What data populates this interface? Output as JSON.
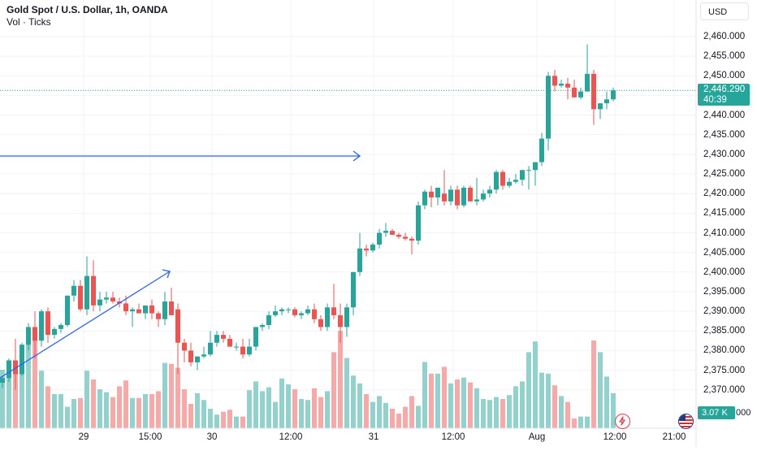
{
  "header": {
    "title": "Gold Spot / U.S. Dollar, 1h, OANDA",
    "subtitle": "Vol · Ticks"
  },
  "currency_selector": "USD",
  "price_axis": {
    "ticks": [
      "2,460.000",
      "2,455.000",
      "2,450.000",
      "2,445.000",
      "2,440.000",
      "2,435.000",
      "2,430.000",
      "2,425.000",
      "2,420.000",
      "2,415.000",
      "2,410.000",
      "2,405.000",
      "2,400.000",
      "2,395.000",
      "2,390.000",
      "2,385.000",
      "2,380.000",
      "2,375.000",
      "2,370.000"
    ],
    "current_price": "2,446.290",
    "countdown": "40:39",
    "volume_label": "3.07 K",
    "partial_tick": "000"
  },
  "time_axis": {
    "labels": [
      "29",
      "15:00",
      "30",
      "12:00",
      "31",
      "12:00",
      "Aug",
      "12:00",
      "21:00"
    ]
  },
  "colors": {
    "up": "#26a69a",
    "down": "#ef5350",
    "up_volume": "#92d2cc",
    "down_volume": "#f7a9a7",
    "drawing": "#2962ff",
    "grid": "#f0f3fa"
  },
  "icons": [
    "arrow-right-icon",
    "lightning-icon",
    "us-flag-icon"
  ],
  "chart_data": {
    "type": "candlestick",
    "title": "Gold Spot / U.S. Dollar, 1h, OANDA",
    "ylim": [
      2365,
      2465
    ],
    "grid": true,
    "last_price": 2446.29,
    "candles": [
      [
        2371.8,
        2373.5,
        2370.5,
        2373.0
      ],
      [
        2373.0,
        2378.0,
        2372.0,
        2377.5
      ],
      [
        2377.5,
        2383.0,
        2370.0,
        2374.0
      ],
      [
        2374.0,
        2382.0,
        2373.5,
        2381.5
      ],
      [
        2381.5,
        2387.0,
        2380.0,
        2386.0
      ],
      [
        2386.0,
        2390.0,
        2378.0,
        2382.5
      ],
      [
        2382.5,
        2390.5,
        2381.0,
        2390.0
      ],
      [
        2390.0,
        2391.0,
        2382.0,
        2384.0
      ],
      [
        2384.0,
        2386.0,
        2383.0,
        2385.5
      ],
      [
        2385.5,
        2387.0,
        2384.5,
        2386.5
      ],
      [
        2386.5,
        2394.0,
        2386.0,
        2394.0
      ],
      [
        2394.0,
        2398.0,
        2392.5,
        2396.5
      ],
      [
        2396.5,
        2398.0,
        2390.0,
        2390.5
      ],
      [
        2390.5,
        2404.0,
        2389.0,
        2399.0
      ],
      [
        2399.0,
        2403.0,
        2390.0,
        2391.5
      ],
      [
        2391.5,
        2395.0,
        2390.0,
        2393.0
      ],
      [
        2393.0,
        2395.0,
        2392.0,
        2393.5
      ],
      [
        2393.5,
        2395.0,
        2392.0,
        2392.5
      ],
      [
        2392.5,
        2393.5,
        2391.0,
        2392.0
      ],
      [
        2392.0,
        2394.0,
        2389.0,
        2390.0
      ],
      [
        2390.0,
        2391.0,
        2386.0,
        2390.5
      ],
      [
        2390.5,
        2392.0,
        2389.5,
        2389.5
      ],
      [
        2389.5,
        2391.0,
        2388.0,
        2391.5
      ],
      [
        2391.5,
        2393.0,
        2388.0,
        2389.5
      ],
      [
        2389.5,
        2390.0,
        2386.0,
        2388.0
      ],
      [
        2388.0,
        2395.0,
        2386.5,
        2392.5
      ],
      [
        2392.5,
        2396.0,
        2390.0,
        2389.0
      ],
      [
        2390.5,
        2392.0,
        2374.0,
        2382.0
      ],
      [
        2382.0,
        2383.0,
        2377.0,
        2380.0
      ],
      [
        2380.0,
        2382.0,
        2376.0,
        2377.0
      ],
      [
        2377.0,
        2378.5,
        2375.0,
        2378.5
      ],
      [
        2378.5,
        2381.0,
        2378.0,
        2379.0
      ],
      [
        2379.0,
        2385.0,
        2378.5,
        2382.0
      ],
      [
        2382.0,
        2385.0,
        2381.0,
        2384.0
      ],
      [
        2384.0,
        2385.0,
        2382.0,
        2383.0
      ],
      [
        2383.0,
        2384.0,
        2381.0,
        2381.0
      ],
      [
        2381.0,
        2382.0,
        2380.0,
        2381.0
      ],
      [
        2381.0,
        2383.0,
        2378.0,
        2379.0
      ],
      [
        2379.0,
        2383.0,
        2378.5,
        2381.0
      ],
      [
        2381.0,
        2386.0,
        2380.0,
        2386.0
      ],
      [
        2386.0,
        2387.0,
        2385.0,
        2386.5
      ],
      [
        2386.5,
        2390.0,
        2385.5,
        2389.0
      ],
      [
        2389.0,
        2391.5,
        2388.5,
        2390.0
      ],
      [
        2390.0,
        2391.0,
        2389.0,
        2390.5
      ],
      [
        2390.5,
        2391.0,
        2389.5,
        2390.5
      ],
      [
        2390.5,
        2391.0,
        2388.5,
        2389.0
      ],
      [
        2389.0,
        2390.0,
        2388.0,
        2389.5
      ],
      [
        2389.5,
        2391.5,
        2389.0,
        2390.5
      ],
      [
        2390.5,
        2392.0,
        2387.0,
        2388.0
      ],
      [
        2388.0,
        2389.0,
        2385.0,
        2386.0
      ],
      [
        2386.0,
        2392.0,
        2385.0,
        2391.0
      ],
      [
        2391.0,
        2397.0,
        2388.0,
        2389.0
      ],
      [
        2389.0,
        2392.0,
        2382.0,
        2386.0
      ],
      [
        2386.0,
        2392.0,
        2383.5,
        2391.0
      ],
      [
        2391.0,
        2400.0,
        2389.0,
        2400.0
      ],
      [
        2400.0,
        2410.0,
        2399.0,
        2406.0
      ],
      [
        2406.0,
        2407.0,
        2404.0,
        2405.5
      ],
      [
        2405.5,
        2407.5,
        2405.0,
        2407.0
      ],
      [
        2407.0,
        2411.0,
        2406.0,
        2410.0
      ],
      [
        2410.0,
        2412.5,
        2409.0,
        2410.5
      ],
      [
        2410.5,
        2411.0,
        2409.5,
        2409.5
      ],
      [
        2409.5,
        2410.0,
        2408.5,
        2409.0
      ],
      [
        2409.0,
        2410.0,
        2408.0,
        2408.5
      ],
      [
        2408.5,
        2409.0,
        2404.5,
        2408.0
      ],
      [
        2408.0,
        2418.0,
        2407.0,
        2417.0
      ],
      [
        2417.0,
        2421.0,
        2416.0,
        2420.5
      ],
      [
        2420.5,
        2422.0,
        2416.5,
        2419.0
      ],
      [
        2419.0,
        2421.0,
        2417.0,
        2421.5
      ],
      [
        2420.0,
        2426.0,
        2417.0,
        2418.0
      ],
      [
        2418.0,
        2422.0,
        2417.0,
        2421.0
      ],
      [
        2421.0,
        2422.0,
        2416.0,
        2417.0
      ],
      [
        2417.0,
        2422.0,
        2416.5,
        2421.5
      ],
      [
        2421.5,
        2422.0,
        2418.0,
        2418.0
      ],
      [
        2418.0,
        2424.0,
        2417.0,
        2418.5
      ],
      [
        2418.5,
        2421.0,
        2418.0,
        2420.0
      ],
      [
        2420.0,
        2422.0,
        2419.0,
        2421.0
      ],
      [
        2421.0,
        2426.0,
        2420.0,
        2425.5
      ],
      [
        2425.5,
        2426.0,
        2421.0,
        2422.0
      ],
      [
        2422.0,
        2424.0,
        2421.5,
        2423.0
      ],
      [
        2423.0,
        2425.0,
        2422.5,
        2423.5
      ],
      [
        2423.5,
        2426.0,
        2422.0,
        2426.0
      ],
      [
        2426.0,
        2427.0,
        2421.0,
        2426.0
      ],
      [
        2426.0,
        2428.0,
        2422.0,
        2428.0
      ],
      [
        2428.0,
        2435.5,
        2427.0,
        2434.0
      ],
      [
        2434.0,
        2451.0,
        2431.0,
        2450.0
      ],
      [
        2450.0,
        2451.5,
        2446.0,
        2447.5
      ],
      [
        2447.5,
        2449.0,
        2447.0,
        2448.0
      ],
      [
        2448.0,
        2449.5,
        2444.0,
        2447.0
      ],
      [
        2447.0,
        2449.0,
        2444.5,
        2444.5
      ],
      [
        2444.5,
        2447.0,
        2444.0,
        2446.0
      ],
      [
        2446.0,
        2458.0,
        2446.0,
        2450.5
      ],
      [
        2450.5,
        2451.5,
        2437.5,
        2441.5
      ],
      [
        2441.5,
        2443.0,
        2439.0,
        2443.0
      ],
      [
        2443.0,
        2446.0,
        2441.5,
        2444.0
      ],
      [
        2444.0,
        2447.0,
        2443.5,
        2446.29
      ]
    ],
    "volume": [
      0.6,
      0.67,
      0.56,
      0.82,
      0.98,
      0.92,
      0.59,
      0.43,
      0.35,
      0.35,
      0.22,
      0.3,
      0.31,
      0.59,
      0.5,
      0.4,
      0.37,
      0.32,
      0.43,
      0.49,
      0.31,
      0.31,
      0.35,
      0.35,
      0.38,
      0.67,
      0.66,
      0.62,
      0.4,
      0.25,
      0.36,
      0.29,
      0.2,
      0.14,
      0.17,
      0.19,
      0.12,
      0.12,
      0.39,
      0.48,
      0.38,
      0.42,
      0.27,
      0.51,
      0.45,
      0.4,
      0.3,
      0.29,
      0.41,
      0.32,
      0.38,
      0.78,
      1.0,
      0.72,
      0.54,
      0.46,
      0.35,
      0.27,
      0.33,
      0.26,
      0.2,
      0.15,
      0.22,
      0.33,
      0.23,
      0.68,
      0.56,
      0.56,
      0.63,
      0.46,
      0.5,
      0.52,
      0.47,
      0.41,
      0.3,
      0.29,
      0.32,
      0.3,
      0.34,
      0.43,
      0.48,
      0.78,
      0.89,
      0.57,
      0.56,
      0.44,
      0.33,
      0.27,
      0.1,
      0.12,
      0.12,
      0.9,
      0.78,
      0.53,
      0.36
    ]
  }
}
